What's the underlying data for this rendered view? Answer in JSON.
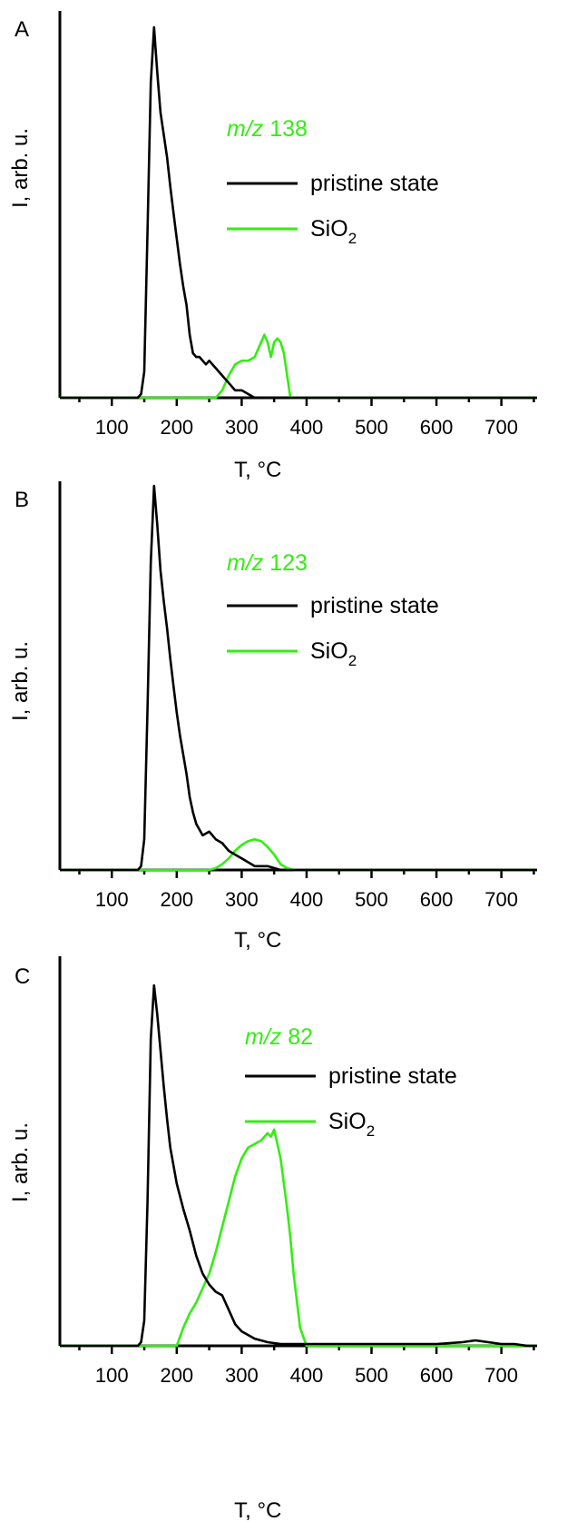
{
  "chart_data": [
    {
      "type": "line",
      "panel_label": "A",
      "annotation": {
        "prefix": "m/z",
        "value": "138"
      },
      "xlabel": "T, °C",
      "ylabel": "I, arb. u.",
      "xlim": [
        20,
        755
      ],
      "ylim": [
        0,
        100
      ],
      "xticks": [
        100,
        200,
        300,
        400,
        500,
        600,
        700
      ],
      "legend_position": "upper-right",
      "series": [
        {
          "name": "pristine state",
          "color": "#000000",
          "x": [
            20,
            140,
            145,
            150,
            155,
            160,
            165,
            170,
            175,
            180,
            185,
            190,
            195,
            200,
            205,
            210,
            215,
            220,
            225,
            230,
            235,
            240,
            245,
            250,
            255,
            260,
            270,
            280,
            290,
            300,
            310,
            320,
            340,
            360,
            380,
            755
          ],
          "y": [
            0,
            0,
            1,
            7,
            45,
            85,
            100,
            88,
            77,
            71,
            65,
            57,
            50,
            43,
            36,
            30,
            25,
            17,
            12,
            11,
            11,
            10,
            9,
            10,
            9,
            8,
            6,
            4,
            2,
            2,
            1,
            0,
            0,
            0,
            0,
            0
          ]
        },
        {
          "name": "SiO",
          "name_sub": "2",
          "color": "#33ee11",
          "x": [
            20,
            260,
            270,
            280,
            290,
            300,
            310,
            320,
            330,
            335,
            340,
            345,
            350,
            355,
            360,
            365,
            370,
            375,
            380,
            755
          ],
          "y": [
            0,
            0,
            2,
            6,
            9,
            10,
            10,
            11,
            15,
            17,
            15,
            11,
            15,
            16,
            15,
            12,
            6,
            0,
            0,
            0
          ]
        }
      ]
    },
    {
      "type": "line",
      "panel_label": "B",
      "annotation": {
        "prefix": "m/z",
        "value": "123"
      },
      "xlabel": "T, °C",
      "ylabel": "I, arb. u.",
      "xlim": [
        20,
        755
      ],
      "ylim": [
        0,
        100
      ],
      "xticks": [
        100,
        200,
        300,
        400,
        500,
        600,
        700
      ],
      "legend_position": "upper-right",
      "series": [
        {
          "name": "pristine state",
          "color": "#000000",
          "x": [
            20,
            140,
            145,
            150,
            155,
            160,
            165,
            170,
            175,
            180,
            185,
            190,
            195,
            200,
            205,
            210,
            215,
            220,
            225,
            230,
            240,
            250,
            260,
            270,
            280,
            290,
            300,
            320,
            340,
            360,
            380,
            755
          ],
          "y": [
            0,
            0,
            1,
            8,
            42,
            80,
            100,
            90,
            78,
            70,
            63,
            55,
            48,
            41,
            35,
            30,
            25,
            19,
            15,
            12,
            9,
            10,
            8,
            7,
            5,
            4,
            3,
            1,
            1,
            0,
            0,
            0
          ]
        },
        {
          "name": "SiO",
          "name_sub": "2",
          "color": "#33ee11",
          "x": [
            20,
            250,
            260,
            270,
            280,
            290,
            300,
            310,
            320,
            330,
            340,
            350,
            360,
            370,
            380,
            755
          ],
          "y": [
            0,
            0,
            0.5,
            1.5,
            3,
            5,
            6.5,
            7.5,
            8,
            7.5,
            6,
            4,
            1.5,
            0.5,
            0,
            0
          ]
        }
      ]
    },
    {
      "type": "line",
      "panel_label": "C",
      "annotation": {
        "prefix": "m/z",
        "value": "82"
      },
      "xlabel": "T, °C",
      "ylabel": "I, arb. u.",
      "xlim": [
        20,
        755
      ],
      "ylim": [
        0,
        100
      ],
      "xticks": [
        100,
        200,
        300,
        400,
        500,
        600,
        700
      ],
      "legend_position": "upper-right",
      "series": [
        {
          "name": "pristine state",
          "color": "#000000",
          "x": [
            20,
            140,
            145,
            150,
            155,
            160,
            165,
            170,
            175,
            180,
            185,
            190,
            200,
            210,
            220,
            230,
            240,
            250,
            260,
            270,
            280,
            290,
            300,
            320,
            340,
            360,
            400,
            450,
            500,
            550,
            600,
            640,
            660,
            680,
            700,
            720,
            740,
            755
          ],
          "y": [
            0,
            0,
            1,
            7,
            40,
            85,
            100,
            92,
            82,
            72,
            63,
            55,
            45,
            38,
            32,
            25,
            20,
            17,
            15,
            14,
            10,
            6,
            4,
            2,
            1,
            0.5,
            0.5,
            0.5,
            0.5,
            0.5,
            0.5,
            1,
            1.5,
            1,
            0.5,
            0.5,
            0,
            0
          ]
        },
        {
          "name": "SiO",
          "name_sub": "2",
          "color": "#33ee11",
          "x": [
            20,
            200,
            210,
            220,
            230,
            240,
            250,
            260,
            270,
            280,
            290,
            300,
            310,
            320,
            330,
            340,
            345,
            350,
            355,
            360,
            365,
            370,
            375,
            380,
            390,
            400,
            755
          ],
          "y": [
            0,
            0,
            5,
            9,
            12,
            16,
            20,
            26,
            33,
            40,
            47,
            52,
            55,
            56,
            57,
            59,
            58,
            60,
            56,
            52,
            45,
            38,
            30,
            20,
            5,
            0,
            0
          ]
        }
      ]
    }
  ]
}
